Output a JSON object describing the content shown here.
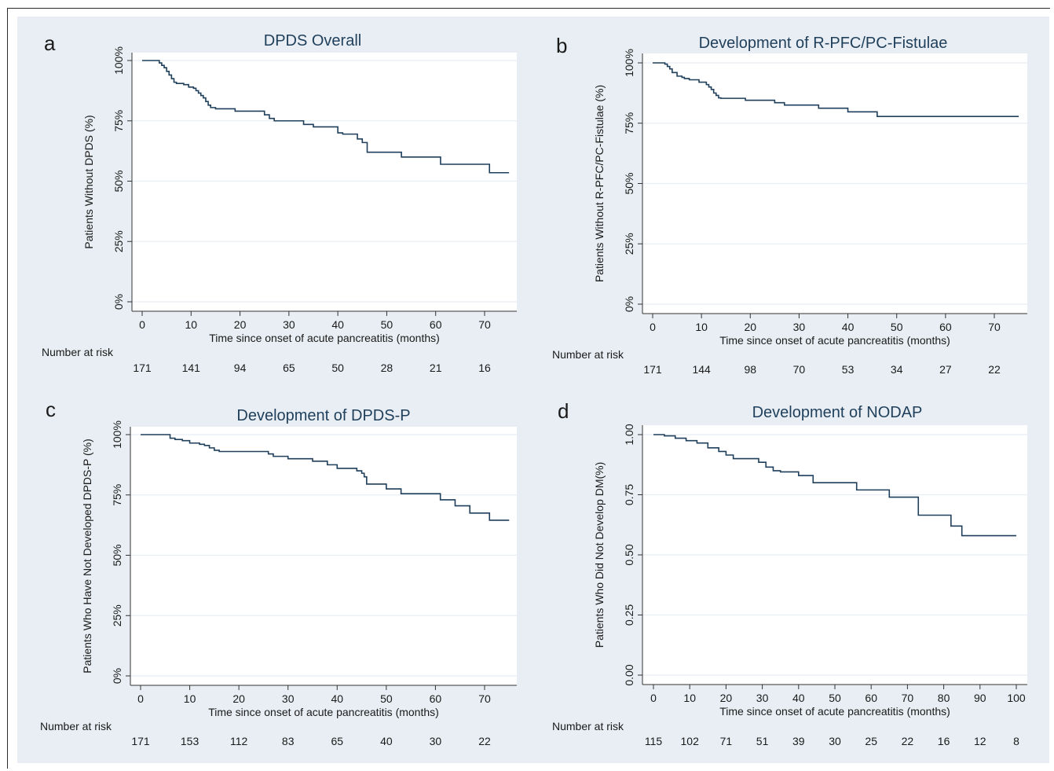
{
  "chart_data": [
    {
      "type": "line",
      "panel_letter": "a",
      "title": "DPDS Overall",
      "xlabel": "Time since onset of acute pancreatitis (months)",
      "ylabel": "Patients Without DPDS (%)",
      "xlim": [
        0,
        75
      ],
      "ylim": [
        0,
        1
      ],
      "xticks": [
        0,
        10,
        20,
        30,
        40,
        50,
        60,
        70
      ],
      "yticks": [
        0,
        0.25,
        0.5,
        0.75,
        1.0
      ],
      "ytick_labels": [
        "0%",
        "25%",
        "50%",
        "75%",
        "100%"
      ],
      "grid": true,
      "risk_label": "Number at risk",
      "risk_x": [
        0,
        10,
        20,
        30,
        40,
        50,
        60,
        70
      ],
      "risk_values": [
        "171",
        "141",
        "94",
        "65",
        "50",
        "28",
        "21",
        "16"
      ],
      "series": [
        {
          "x": [
            0,
            3.5,
            4,
            4.5,
            5,
            5.5,
            6,
            6.5,
            7,
            8.5,
            9.5,
            10.5,
            11,
            11.5,
            12,
            12.5,
            13,
            13.5,
            14,
            15,
            19,
            25,
            26,
            27,
            33,
            35,
            40,
            41,
            44,
            45,
            46,
            53,
            61,
            71,
            75
          ],
          "y": [
            1.0,
            0.99,
            0.98,
            0.97,
            0.955,
            0.94,
            0.925,
            0.91,
            0.905,
            0.9,
            0.89,
            0.885,
            0.875,
            0.865,
            0.855,
            0.845,
            0.83,
            0.815,
            0.805,
            0.8,
            0.79,
            0.775,
            0.76,
            0.75,
            0.735,
            0.725,
            0.7,
            0.695,
            0.675,
            0.66,
            0.62,
            0.6,
            0.57,
            0.535,
            0.535
          ]
        }
      ]
    },
    {
      "type": "line",
      "panel_letter": "b",
      "title": "Development of R-PFC/PC-Fistulae",
      "xlabel": "Time since onset of acute pancreatitis (months)",
      "ylabel": "Patients Without R-PFC/PC-Fistulae (%)",
      "xlim": [
        0,
        75
      ],
      "ylim": [
        0,
        1
      ],
      "xticks": [
        0,
        10,
        20,
        30,
        40,
        50,
        60,
        70
      ],
      "yticks": [
        0,
        0.25,
        0.5,
        0.75,
        1.0
      ],
      "ytick_labels": [
        "0%",
        "25%",
        "50%",
        "75%",
        "100%"
      ],
      "grid": true,
      "risk_label": "Number at risk",
      "risk_x": [
        0,
        10,
        20,
        30,
        40,
        50,
        60,
        70
      ],
      "risk_values": [
        "171",
        "144",
        "98",
        "70",
        "53",
        "34",
        "27",
        "22"
      ],
      "series": [
        {
          "x": [
            0,
            2.5,
            3,
            3.5,
            4,
            5,
            6,
            6.5,
            7.5,
            9.5,
            11,
            11.5,
            12,
            12.5,
            13,
            13.5,
            14,
            19,
            25,
            27,
            34,
            40,
            46,
            75
          ],
          "y": [
            1.0,
            0.995,
            0.985,
            0.975,
            0.96,
            0.945,
            0.94,
            0.935,
            0.93,
            0.92,
            0.91,
            0.9,
            0.89,
            0.875,
            0.865,
            0.855,
            0.853,
            0.845,
            0.835,
            0.825,
            0.812,
            0.797,
            0.778,
            0.778
          ]
        }
      ]
    },
    {
      "type": "line",
      "panel_letter": "c",
      "title": "Development of DPDS-P",
      "xlabel": "Time since onset of acute pancreatitis (months)",
      "ylabel": "Patients Who Have Not Developed DPDS-P (%)",
      "xlim": [
        0,
        75
      ],
      "ylim": [
        0,
        1
      ],
      "xticks": [
        0,
        10,
        20,
        30,
        40,
        50,
        60,
        70
      ],
      "yticks": [
        0,
        0.25,
        0.5,
        0.75,
        1.0
      ],
      "ytick_labels": [
        "0%",
        "25%",
        "50%",
        "75%",
        "100%"
      ],
      "grid": true,
      "risk_label": "Number at risk",
      "risk_x": [
        0,
        10,
        20,
        30,
        40,
        50,
        60,
        70
      ],
      "risk_values": [
        "171",
        "153",
        "112",
        "83",
        "65",
        "40",
        "30",
        "22"
      ],
      "series": [
        {
          "x": [
            0,
            6,
            7,
            8.5,
            10,
            12,
            13,
            14,
            15,
            16,
            26,
            27,
            30,
            35,
            38,
            40,
            44,
            45,
            45.5,
            46,
            50,
            53,
            61,
            64,
            67,
            71,
            75
          ],
          "y": [
            1.0,
            0.985,
            0.98,
            0.975,
            0.965,
            0.96,
            0.955,
            0.945,
            0.935,
            0.93,
            0.92,
            0.91,
            0.9,
            0.89,
            0.875,
            0.86,
            0.85,
            0.84,
            0.825,
            0.795,
            0.775,
            0.755,
            0.73,
            0.705,
            0.675,
            0.645,
            0.645
          ]
        }
      ]
    },
    {
      "type": "line",
      "panel_letter": "d",
      "title": "Development of NODAP",
      "xlabel": "Time since onset of acute pancreatitis (months)",
      "ylabel": "Patients Who Did Not Develop DM(%)",
      "xlim": [
        0,
        100
      ],
      "ylim": [
        0,
        1
      ],
      "xticks": [
        0,
        10,
        20,
        30,
        40,
        50,
        60,
        70,
        80,
        90,
        100
      ],
      "yticks": [
        0,
        0.25,
        0.5,
        0.75,
        1.0
      ],
      "ytick_labels": [
        "0.00",
        "0.25",
        "0.50",
        "0.75",
        "1.00"
      ],
      "grid": true,
      "risk_label": "Number at risk",
      "risk_x": [
        0,
        10,
        20,
        30,
        40,
        50,
        60,
        70,
        80,
        90,
        100
      ],
      "risk_values": [
        "115",
        "102",
        "71",
        "51",
        "39",
        "30",
        "25",
        "22",
        "16",
        "12",
        "8"
      ],
      "series": [
        {
          "x": [
            0,
            3,
            6,
            9,
            12,
            15,
            18,
            20,
            22,
            29,
            31,
            33,
            35,
            40,
            44,
            56,
            65,
            73,
            82,
            85,
            100
          ],
          "y": [
            1.0,
            0.995,
            0.985,
            0.975,
            0.965,
            0.945,
            0.93,
            0.915,
            0.9,
            0.885,
            0.865,
            0.85,
            0.845,
            0.83,
            0.8,
            0.77,
            0.74,
            0.665,
            0.62,
            0.58,
            0.58
          ]
        }
      ]
    }
  ],
  "colors": {
    "line": "#1f3f5b",
    "background": "#e8eef3",
    "plot_area": "#ffffff",
    "grid": "#e8eef3",
    "text": "#1a1a1a",
    "title": "#1f3f5b"
  }
}
